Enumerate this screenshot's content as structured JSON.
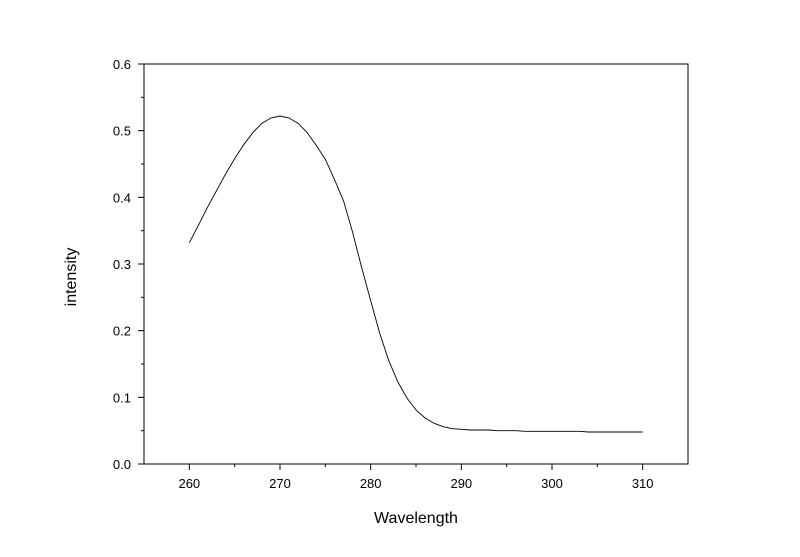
{
  "chart_data": {
    "type": "line",
    "title": "",
    "xlabel": "Wavelength",
    "ylabel": "intensity",
    "xlim": [
      255,
      315
    ],
    "ylim": [
      0.0,
      0.6
    ],
    "x_ticks": [
      260,
      270,
      280,
      290,
      300,
      310
    ],
    "x_tick_labels": [
      "260",
      "270",
      "280",
      "290",
      "300",
      "310"
    ],
    "x_minor_ticks": [
      265,
      275,
      285,
      295,
      305
    ],
    "y_ticks": [
      0.0,
      0.1,
      0.2,
      0.3,
      0.4,
      0.5,
      0.6
    ],
    "y_tick_labels": [
      "0.0",
      "0.1",
      "0.2",
      "0.3",
      "0.4",
      "0.5",
      "0.6"
    ],
    "y_minor_ticks": [
      0.05,
      0.15,
      0.25,
      0.35,
      0.45,
      0.55
    ],
    "grid": false,
    "legend": "none",
    "series": [
      {
        "color": "#000000",
        "x": [
          260,
          261,
          262,
          263,
          264,
          265,
          266,
          267,
          268,
          269,
          270,
          271,
          272,
          273,
          274,
          275,
          276,
          277,
          278,
          279,
          280,
          281,
          282,
          283,
          284,
          285,
          286,
          287,
          288,
          289,
          290,
          291,
          292,
          293,
          294,
          295,
          296,
          297,
          298,
          299,
          300,
          301,
          302,
          303,
          304,
          305,
          306,
          307,
          308,
          309,
          310
        ],
        "y": [
          0.332,
          0.358,
          0.385,
          0.41,
          0.435,
          0.458,
          0.479,
          0.497,
          0.511,
          0.519,
          0.522,
          0.519,
          0.511,
          0.497,
          0.478,
          0.457,
          0.427,
          0.395,
          0.348,
          0.295,
          0.245,
          0.196,
          0.155,
          0.123,
          0.099,
          0.081,
          0.069,
          0.061,
          0.056,
          0.053,
          0.052,
          0.051,
          0.051,
          0.051,
          0.05,
          0.05,
          0.05,
          0.049,
          0.049,
          0.049,
          0.049,
          0.049,
          0.049,
          0.049,
          0.048,
          0.048,
          0.048,
          0.048,
          0.048,
          0.048,
          0.048
        ]
      }
    ]
  }
}
